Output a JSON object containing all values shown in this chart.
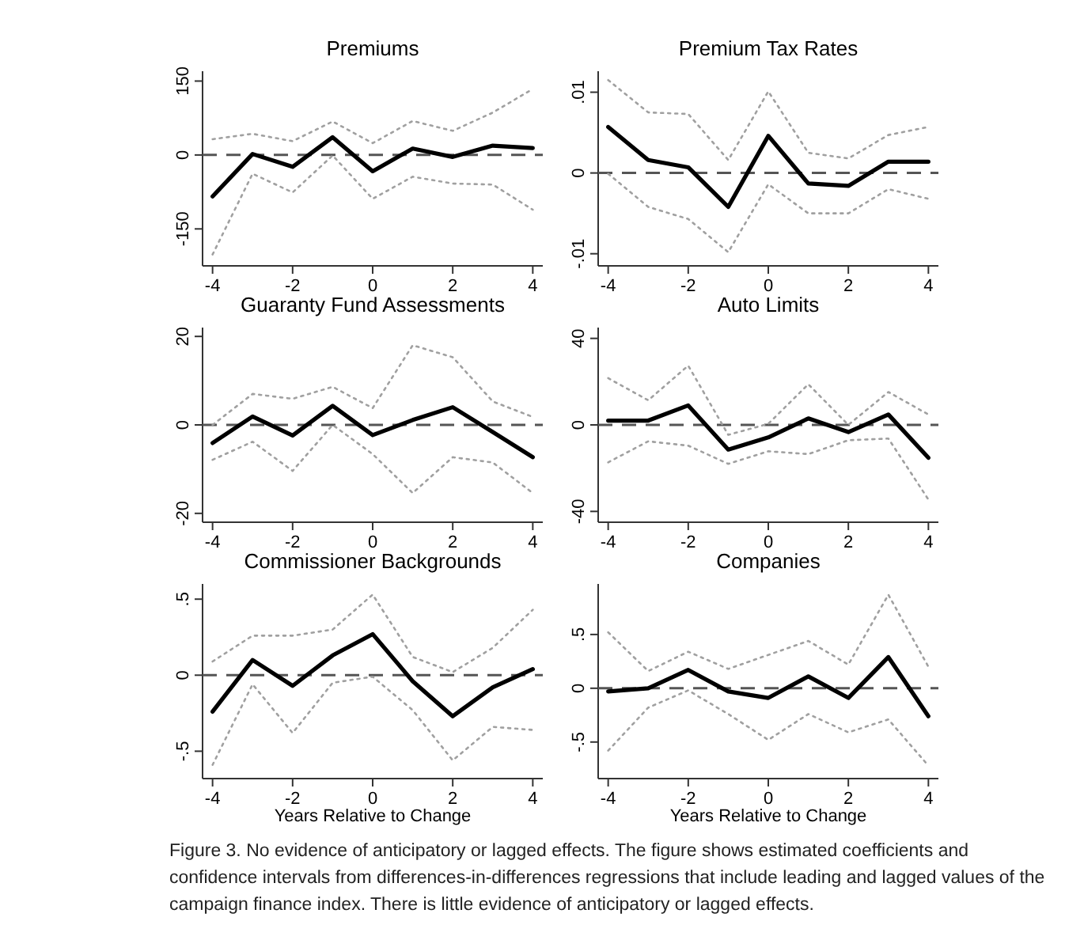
{
  "chart_data": [
    {
      "type": "line",
      "title": "Premiums",
      "annotations": [
        "Figure 3. No evidence of anticipatory or lagged effects. The figure shows estimated coefficients and confidence intervals from differences-in-differences regressions that include leading and lagged values of the campaign finance index. There is little evidence of anticipatory or lagged effects."
      ],
      "x": [
        -4,
        -3,
        -2,
        -1,
        0,
        1,
        2,
        3,
        4
      ],
      "xlim": [
        -4.25,
        4.25
      ],
      "xticks": [
        -4,
        -2,
        0,
        2,
        4
      ],
      "ylim": [
        -225,
        170
      ],
      "yticks": [
        -150,
        0,
        150
      ],
      "ref_lines": [
        {
          "axis": "y",
          "value": 0,
          "color": "#555555",
          "line_style": "dashed"
        }
      ],
      "series": [
        {
          "color": "#a0a0a0",
          "line_style": "dotted",
          "values": [
            32,
            43,
            28,
            68,
            24,
            69,
            49,
            86,
            134
          ]
        },
        {
          "color": "#a0a0a0",
          "line_style": "dotted",
          "values": [
            -202,
            -38,
            -76,
            -1,
            -89,
            -44,
            -58,
            -60,
            -111
          ]
        },
        {
          "color": "#000000",
          "line_style": "solid",
          "values": [
            -84,
            2,
            -24,
            36,
            -33,
            13,
            -4,
            19,
            14
          ]
        }
      ]
    },
    {
      "type": "line",
      "title": "Premium Tax Rates",
      "x": [
        -4,
        -3,
        -2,
        -1,
        0,
        1,
        2,
        3,
        4
      ],
      "xlim": [
        -4.25,
        4.25
      ],
      "xticks": [
        -4,
        -2,
        0,
        2,
        4
      ],
      "ylim": [
        -0.0115,
        0.0126
      ],
      "yticks": [
        {
          "value": -0.01,
          "label": "-.01"
        },
        0,
        {
          "value": 0.01,
          "label": ".01"
        }
      ],
      "ref_lines": [
        {
          "axis": "y",
          "value": 0,
          "color": "#555555",
          "line_style": "dashed"
        }
      ],
      "series": [
        {
          "color": "#a0a0a0",
          "line_style": "dotted",
          "values": [
            0.0115,
            0.0075,
            0.0073,
            0.0016,
            0.0101,
            0.0025,
            0.0018,
            0.0047,
            0.0057
          ]
        },
        {
          "color": "#a0a0a0",
          "line_style": "dotted",
          "values": [
            -0.0001,
            -0.0042,
            -0.0057,
            -0.0098,
            -0.0014,
            -0.005,
            -0.005,
            -0.002,
            -0.0032
          ]
        },
        {
          "color": "#000000",
          "line_style": "solid",
          "values": [
            0.0057,
            0.0016,
            0.0007,
            -0.0042,
            0.0046,
            -0.0013,
            -0.0016,
            0.0014,
            0.0014
          ]
        }
      ]
    },
    {
      "type": "line",
      "title": "Guaranty Fund Assessments",
      "x": [
        -4,
        -3,
        -2,
        -1,
        0,
        1,
        2,
        3,
        4
      ],
      "xlim": [
        -4.25,
        4.25
      ],
      "xticks": [
        -4,
        -2,
        0,
        2,
        4
      ],
      "ylim": [
        -22,
        22
      ],
      "yticks": [
        -20,
        0,
        20
      ],
      "ref_lines": [
        {
          "axis": "y",
          "value": 0,
          "color": "#555555",
          "line_style": "dashed"
        }
      ],
      "series": [
        {
          "color": "#a0a0a0",
          "line_style": "dotted",
          "values": [
            0,
            7,
            5.9,
            8.6,
            3.8,
            18,
            15.3,
            5.3,
            1.8
          ]
        },
        {
          "color": "#a0a0a0",
          "line_style": "dotted",
          "values": [
            -7.9,
            -3.8,
            -10.4,
            0,
            -6.6,
            -15.4,
            -7.3,
            -8.5,
            -15.4
          ]
        },
        {
          "color": "#000000",
          "line_style": "solid",
          "values": [
            -4.1,
            1.9,
            -2.4,
            4.3,
            -2.3,
            1.1,
            4,
            -1.6,
            -7.3
          ]
        }
      ]
    },
    {
      "type": "line",
      "title": "Auto Limits",
      "x": [
        -4,
        -3,
        -2,
        -1,
        0,
        1,
        2,
        3,
        4
      ],
      "xlim": [
        -4.25,
        4.25
      ],
      "xticks": [
        -4,
        -2,
        0,
        2,
        4
      ],
      "ylim": [
        -45,
        45
      ],
      "yticks": [
        -40,
        0,
        40
      ],
      "ref_lines": [
        {
          "axis": "y",
          "value": 0,
          "color": "#555555",
          "line_style": "dashed"
        }
      ],
      "series": [
        {
          "color": "#a0a0a0",
          "line_style": "dotted",
          "values": [
            21.6,
            11.4,
            27.4,
            -4.6,
            0.5,
            18.8,
            0,
            15.2,
            4.8
          ]
        },
        {
          "color": "#a0a0a0",
          "line_style": "dotted",
          "values": [
            -17.3,
            -7.6,
            -9.6,
            -18,
            -12.2,
            -13.5,
            -7.1,
            -6.3,
            -34.5
          ]
        },
        {
          "color": "#000000",
          "line_style": "solid",
          "values": [
            2,
            2,
            9,
            -11.4,
            -5.8,
            3,
            -3.3,
            4.8,
            -15.2
          ]
        }
      ]
    },
    {
      "type": "line",
      "title": "Commissioner Backgrounds",
      "xlabel": "Years Relative to Change",
      "x": [
        -4,
        -3,
        -2,
        -1,
        0,
        1,
        2,
        3,
        4
      ],
      "xlim": [
        -4.25,
        4.25
      ],
      "xticks": [
        -4,
        -2,
        0,
        2,
        4
      ],
      "ylim": [
        -0.68,
        0.6
      ],
      "yticks": [
        {
          "value": -0.5,
          "label": "-.5"
        },
        0,
        {
          "value": 0.5,
          "label": ".5"
        }
      ],
      "ref_lines": [
        {
          "axis": "y",
          "value": 0,
          "color": "#555555",
          "line_style": "dashed"
        }
      ],
      "series": [
        {
          "color": "#a0a0a0",
          "line_style": "dotted",
          "values": [
            0.09,
            0.26,
            0.26,
            0.3,
            0.53,
            0.12,
            0.02,
            0.18,
            0.43
          ]
        },
        {
          "color": "#a0a0a0",
          "line_style": "dotted",
          "values": [
            -0.59,
            -0.06,
            -0.38,
            -0.05,
            -0.01,
            -0.23,
            -0.56,
            -0.34,
            -0.36
          ]
        },
        {
          "color": "#000000",
          "line_style": "solid",
          "values": [
            -0.24,
            0.1,
            -0.07,
            0.13,
            0.27,
            -0.04,
            -0.27,
            -0.08,
            0.04
          ]
        }
      ]
    },
    {
      "type": "line",
      "title": "Companies",
      "xlabel": "Years Relative to Change",
      "x": [
        -4,
        -3,
        -2,
        -1,
        0,
        1,
        2,
        3,
        4
      ],
      "xlim": [
        -4.25,
        4.25
      ],
      "xticks": [
        -4,
        -2,
        0,
        2,
        4
      ],
      "ylim": [
        -0.84,
        0.97
      ],
      "yticks": [
        {
          "value": -0.5,
          "label": "-.5"
        },
        0,
        {
          "value": 0.5,
          "label": ".5"
        }
      ],
      "ref_lines": [
        {
          "axis": "y",
          "value": 0,
          "color": "#555555",
          "line_style": "dashed"
        }
      ],
      "series": [
        {
          "color": "#a0a0a0",
          "line_style": "dotted",
          "values": [
            0.52,
            0.16,
            0.34,
            0.18,
            0.31,
            0.44,
            0.22,
            0.87,
            0.2
          ]
        },
        {
          "color": "#a0a0a0",
          "line_style": "dotted",
          "values": [
            -0.58,
            -0.18,
            -0.02,
            -0.24,
            -0.48,
            -0.24,
            -0.41,
            -0.29,
            -0.72
          ]
        },
        {
          "color": "#000000",
          "line_style": "solid",
          "values": [
            -0.03,
            0,
            0.17,
            -0.03,
            -0.09,
            0.11,
            -0.09,
            0.29,
            -0.26
          ]
        }
      ]
    }
  ]
}
